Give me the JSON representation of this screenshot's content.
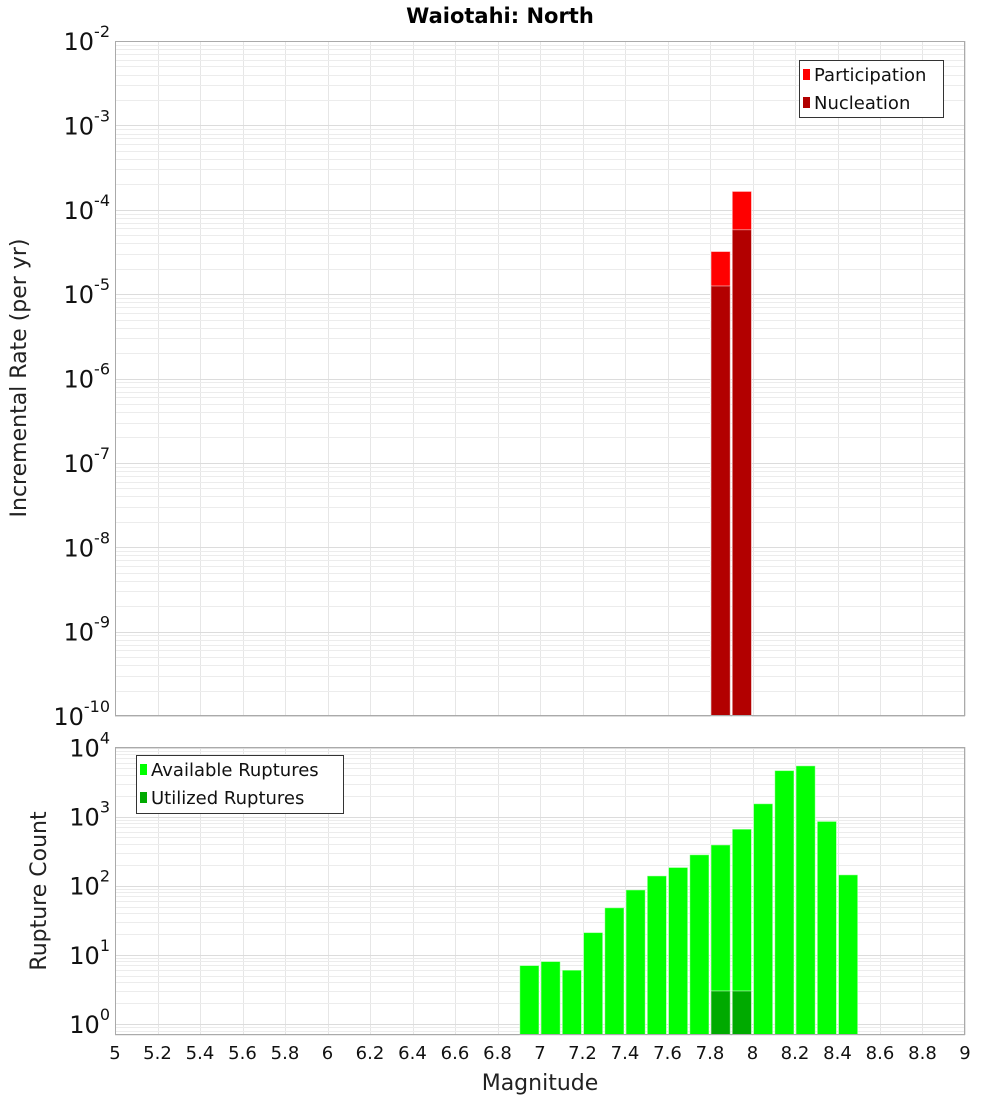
{
  "title": "Waiotahi: North",
  "chart_data": [
    {
      "type": "bar",
      "name": "rate-chart",
      "ylabel": "Incremental Rate (per yr)",
      "yscale": "log",
      "ylim": [
        1e-10,
        0.01
      ],
      "xlim": [
        5,
        9
      ],
      "bin_width": 0.1,
      "yticks": [
        {
          "base": "10",
          "exp": "-10",
          "v": 1e-10
        },
        {
          "base": "10",
          "exp": "-9",
          "v": 1e-09
        },
        {
          "base": "10",
          "exp": "-8",
          "v": 1e-08
        },
        {
          "base": "10",
          "exp": "-7",
          "v": 1e-07
        },
        {
          "base": "10",
          "exp": "-6",
          "v": 1e-06
        },
        {
          "base": "10",
          "exp": "-5",
          "v": 1e-05
        },
        {
          "base": "10",
          "exp": "-4",
          "v": 0.0001
        },
        {
          "base": "10",
          "exp": "-3",
          "v": 0.001
        },
        {
          "base": "10",
          "exp": "-2",
          "v": 0.01
        }
      ],
      "legend_position": "top-right",
      "series": [
        {
          "name": "Participation",
          "color": "#ff0000",
          "x": [
            7.85,
            7.95
          ],
          "values": [
            3.2e-05,
            0.000165
          ]
        },
        {
          "name": "Nucleation",
          "color": "#b20000",
          "x": [
            7.85,
            7.95
          ],
          "values": [
            1.25e-05,
            5.8e-05
          ]
        }
      ]
    },
    {
      "type": "bar",
      "name": "rupture-count-chart",
      "ylabel": "Rupture Count",
      "xlabel": "Magnitude",
      "yscale": "log",
      "ylim": [
        0.69,
        10200
      ],
      "xlim": [
        5,
        9
      ],
      "bin_width": 0.1,
      "yticks": [
        {
          "base": "10",
          "exp": "0",
          "v": 1
        },
        {
          "base": "10",
          "exp": "1",
          "v": 10
        },
        {
          "base": "10",
          "exp": "2",
          "v": 100
        },
        {
          "base": "10",
          "exp": "3",
          "v": 1000
        },
        {
          "base": "10",
          "exp": "4",
          "v": 10000
        }
      ],
      "xticks": [
        "5",
        "5.2",
        "5.4",
        "5.6",
        "5.8",
        "6",
        "6.2",
        "6.4",
        "6.6",
        "6.8",
        "7",
        "7.2",
        "7.4",
        "7.6",
        "7.8",
        "8",
        "8.2",
        "8.4",
        "8.6",
        "8.8",
        "9"
      ],
      "legend_position": "top-left",
      "series": [
        {
          "name": "Available Ruptures",
          "color": "#00ff00",
          "x": [
            6.95,
            7.05,
            7.15,
            7.25,
            7.35,
            7.45,
            7.55,
            7.65,
            7.75,
            7.85,
            7.95,
            8.05,
            8.15,
            8.25,
            8.35,
            8.45
          ],
          "values": [
            7,
            8,
            6,
            21,
            48,
            87,
            139,
            184,
            281,
            390,
            660,
            1540,
            4650,
            5450,
            855,
            144
          ]
        },
        {
          "name": "Utilized Ruptures",
          "color": "#00aa00",
          "x": [
            7.85,
            7.95
          ],
          "values": [
            3,
            3
          ]
        }
      ]
    }
  ]
}
